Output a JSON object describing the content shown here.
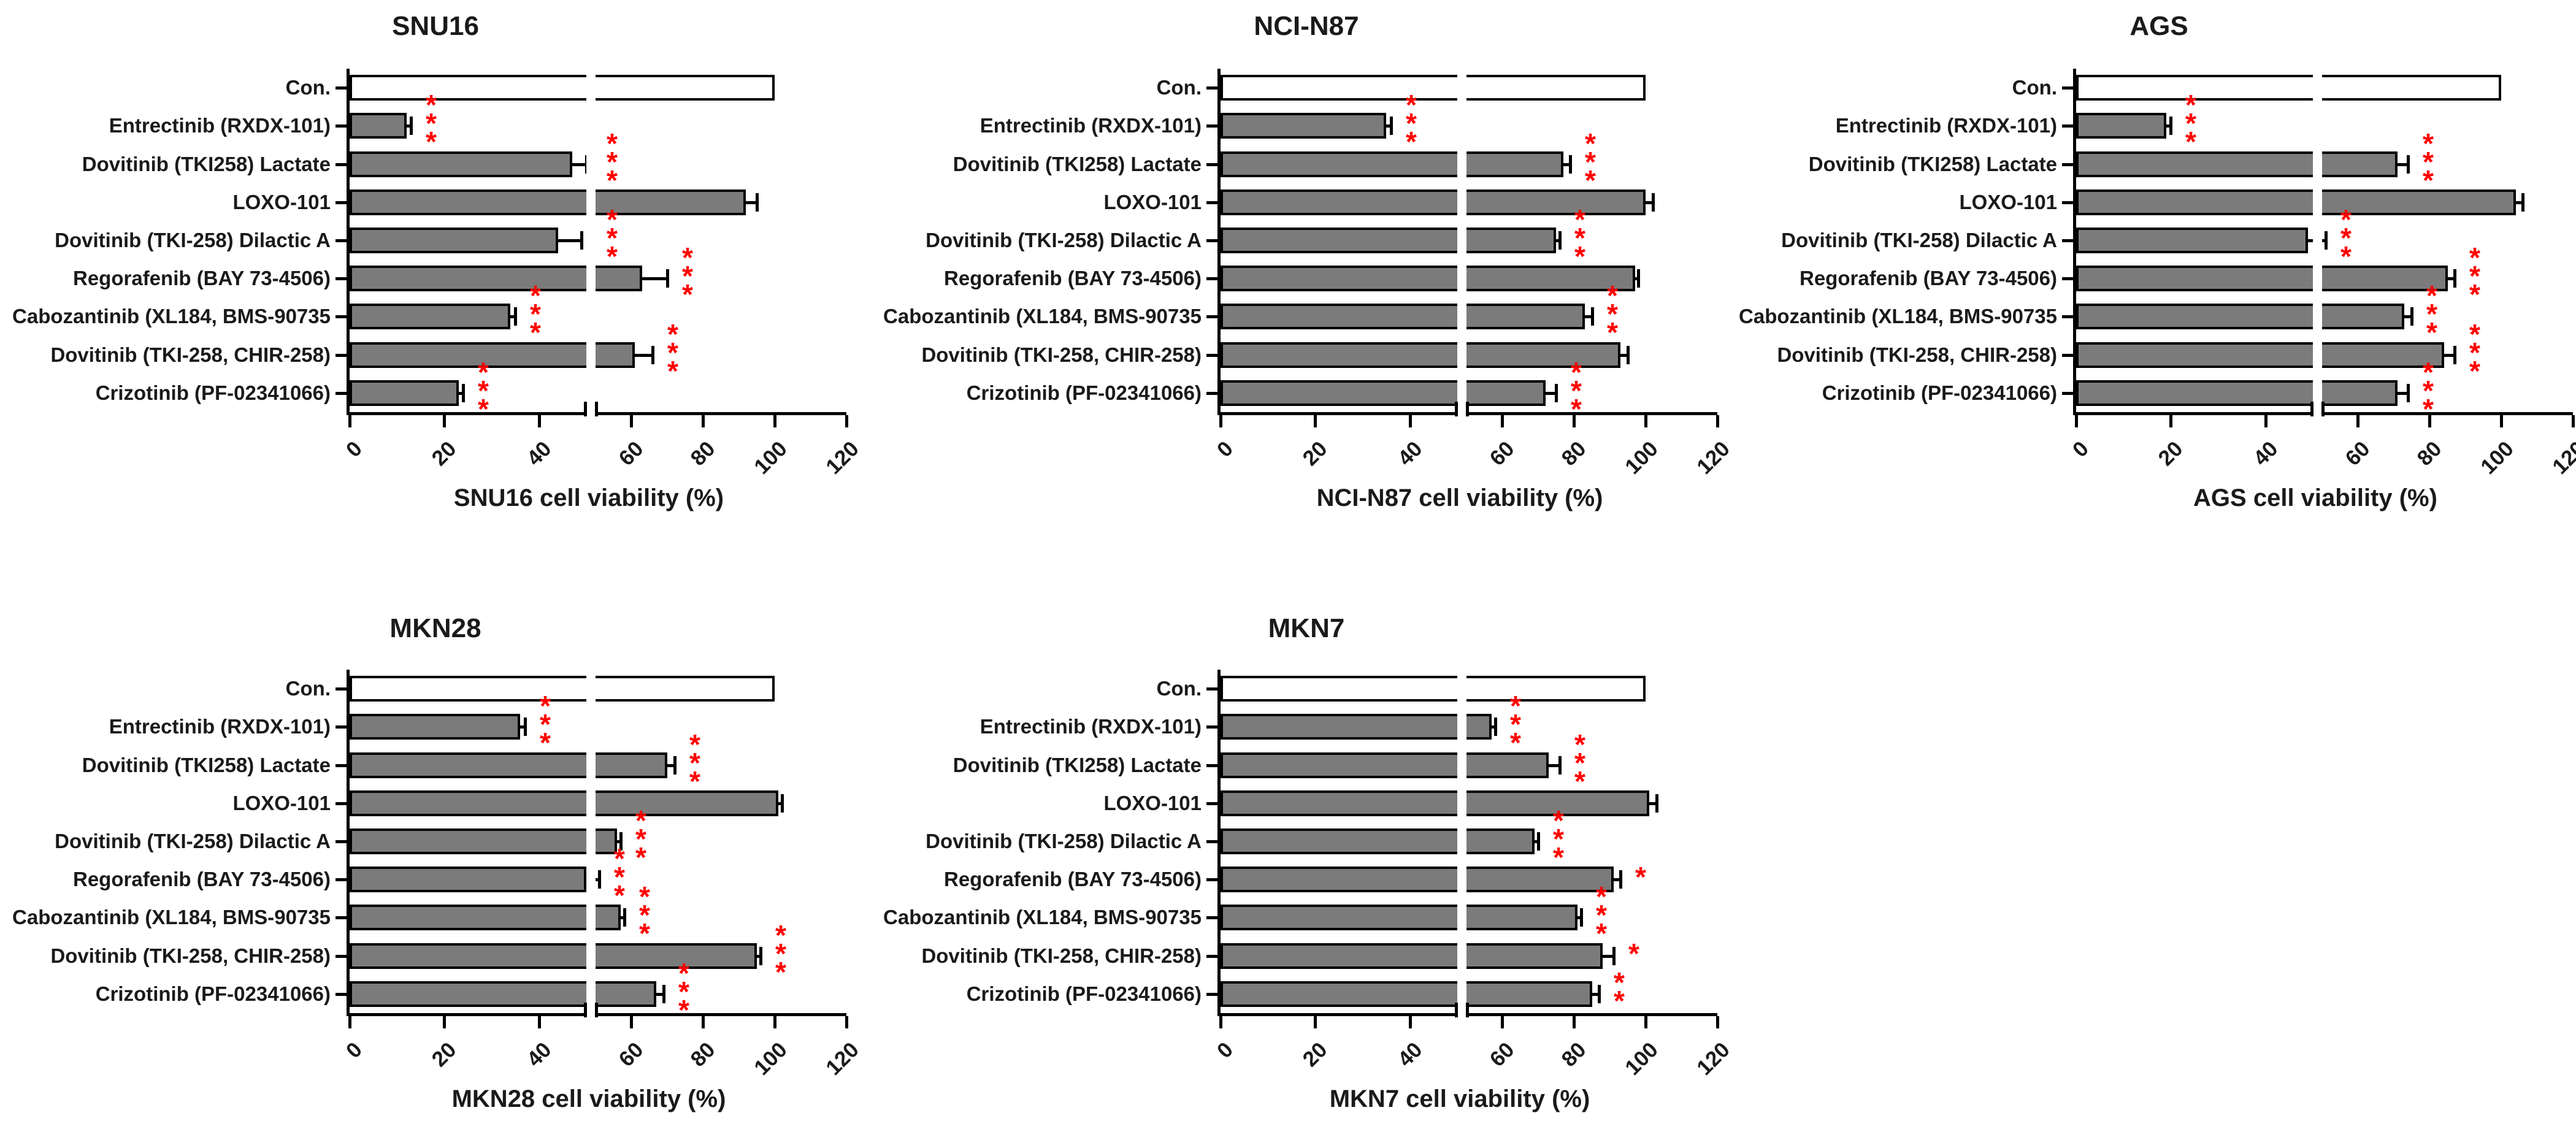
{
  "figure": {
    "description": "Five horizontal bar charts of gastric cancer cell line viability after tyrosine kinase inhibitor treatment, with SEM error bars and red significance asterisks",
    "background": "#ffffff"
  },
  "chart_data": {
    "type": "bar",
    "orientation": "horizontal",
    "grid": false,
    "legend": false,
    "bar_fill": "#7b7b7b",
    "control_fill": "#ffffff",
    "bar_border": "#000000",
    "significance_color": "#ff0000",
    "axis_color": "#000000",
    "x_axis": {
      "ticks": [
        0,
        20,
        40,
        60,
        80,
        100,
        120
      ],
      "lim": [
        0,
        120
      ],
      "tick_label_rotation_deg": -45,
      "break_at": 50,
      "break_note": "axis break (white gap with double tick marks) at ~50; left segment 0-50 wider scale, right segment 50-120 compressed"
    },
    "categories": [
      "Con.",
      "Entrectinib (RXDX-101)",
      "Dovitinib (TKI258) Lactate",
      "LOXO-101",
      "Dovitinib (TKI-258) Dilactic A",
      "Regorafenib (BAY 73-4506)",
      "Cabozantinib (XL184, BMS-90735",
      "Dovitinib (TKI-258, CHIR-258)",
      "Crizotinib (PF-02341066)"
    ],
    "charts": [
      {
        "title": "SNU16",
        "xlabel": "SNU16 cell viability (%)",
        "values": [
          100,
          12,
          47,
          92,
          44,
          63,
          34,
          61,
          23
        ],
        "errors": [
          0,
          1,
          3,
          3,
          5,
          7,
          1,
          5,
          1
        ],
        "stars": [
          "",
          "***",
          "***",
          "",
          "***",
          "***",
          "***",
          "***",
          "***"
        ]
      },
      {
        "title": "NCI-N87",
        "xlabel": "NCI-N87 cell viability (%)",
        "values": [
          100,
          35,
          77,
          100,
          75,
          97,
          83,
          93,
          72
        ],
        "errors": [
          0,
          1,
          2,
          2,
          1,
          1,
          2,
          2,
          3
        ],
        "stars": [
          "",
          "***",
          "***",
          "",
          "***",
          "",
          "***",
          "",
          "***"
        ]
      },
      {
        "title": "AGS",
        "xlabel": "AGS cell viability (%)",
        "values": [
          100,
          19,
          71,
          104,
          49,
          85,
          73,
          84,
          71
        ],
        "errors": [
          0,
          1,
          3,
          2,
          2,
          2,
          2,
          3,
          3
        ],
        "stars": [
          "",
          "***",
          "***",
          "",
          "***",
          "***",
          "***",
          "***",
          "***"
        ]
      },
      {
        "title": "MKN28",
        "xlabel": "MKN28 cell viability (%)",
        "values": [
          100,
          36,
          70,
          101,
          56,
          50,
          57,
          95,
          67
        ],
        "errors": [
          0,
          1,
          2,
          1,
          1,
          1,
          1,
          1,
          2
        ],
        "stars": [
          "",
          "***",
          "***",
          "",
          "***",
          "***",
          "***",
          "***",
          "***"
        ]
      },
      {
        "title": "MKN7",
        "xlabel": "MKN7 cell viability (%)",
        "values": [
          100,
          57,
          73,
          101,
          69,
          91,
          81,
          88,
          85
        ],
        "errors": [
          0,
          1,
          3,
          2,
          1,
          2,
          1,
          3,
          2
        ],
        "stars": [
          "",
          "***",
          "***",
          "",
          "***",
          "*",
          "***",
          "*",
          "**"
        ]
      }
    ]
  }
}
